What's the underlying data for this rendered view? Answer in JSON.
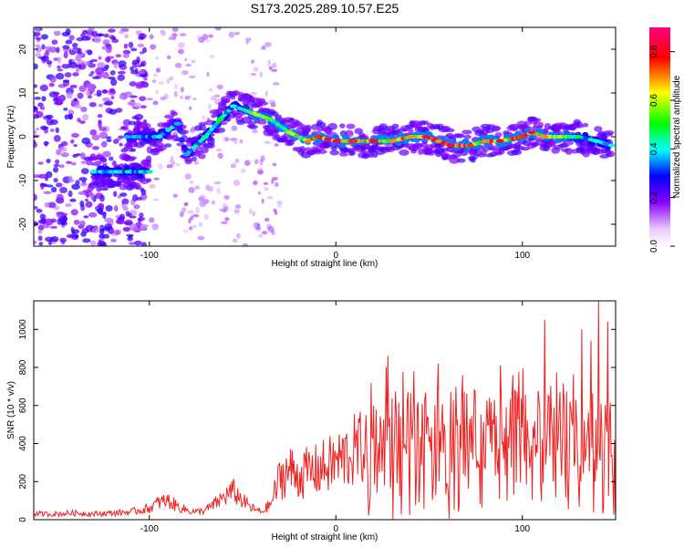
{
  "chart_data": [
    {
      "type": "heatmap",
      "title": "S173.2025.289.10.57.E25",
      "xlabel": "Height of straight line (km)",
      "ylabel": "Frequency (Hz)",
      "xlim": [
        -162,
        150
      ],
      "ylim": [
        -25,
        25
      ],
      "xticks": [
        -100,
        0,
        100
      ],
      "yticks": [
        -20,
        -10,
        0,
        10,
        20
      ],
      "xtick_labels": [
        "-100",
        "0",
        "100"
      ],
      "ytick_labels": [
        "-20",
        "-10",
        "0",
        "10",
        "20"
      ],
      "colorbar": {
        "label": "Normalized spectral amplitude",
        "range": [
          0,
          0.9
        ],
        "ticks": [
          0,
          0.2,
          0.4,
          0.6,
          0.8
        ],
        "tick_labels": [
          "0.0",
          "0.2",
          "0.4",
          "0.6",
          "0.8"
        ],
        "colors": [
          "#ffffff",
          "#8a00ff",
          "#0000ff",
          "#00ffff",
          "#00ff00",
          "#ffff00",
          "#ff0000",
          "#ff0080"
        ]
      },
      "trace_points": [
        {
          "x": -130,
          "y": -8,
          "v": 0.4
        },
        {
          "x": -100,
          "y": -8,
          "v": 0.45
        },
        {
          "x": -112,
          "y": 0,
          "v": 0.35
        },
        {
          "x": -95,
          "y": 0,
          "v": 0.4
        },
        {
          "x": -85,
          "y": 3,
          "v": 0.35
        },
        {
          "x": -80,
          "y": -4,
          "v": 0.35
        },
        {
          "x": -70,
          "y": 0,
          "v": 0.45
        },
        {
          "x": -62,
          "y": 4,
          "v": 0.5
        },
        {
          "x": -55,
          "y": 7,
          "v": 0.4
        },
        {
          "x": -42,
          "y": 5,
          "v": 0.6
        },
        {
          "x": -35,
          "y": 4,
          "v": 0.55
        },
        {
          "x": -25,
          "y": 1,
          "v": 0.6
        },
        {
          "x": -15,
          "y": -1,
          "v": 0.7
        },
        {
          "x": -10,
          "y": 0,
          "v": 0.75
        },
        {
          "x": 0,
          "y": -1,
          "v": 0.85
        },
        {
          "x": 10,
          "y": -1,
          "v": 0.75
        },
        {
          "x": 20,
          "y": -1,
          "v": 0.8
        },
        {
          "x": 30,
          "y": -1,
          "v": 0.7
        },
        {
          "x": 40,
          "y": 0,
          "v": 0.7
        },
        {
          "x": 48,
          "y": 0,
          "v": 0.85
        },
        {
          "x": 55,
          "y": -1,
          "v": 0.7
        },
        {
          "x": 62,
          "y": -2,
          "v": 0.85
        },
        {
          "x": 72,
          "y": -2,
          "v": 0.75
        },
        {
          "x": 80,
          "y": -1,
          "v": 0.7
        },
        {
          "x": 88,
          "y": -1,
          "v": 0.8
        },
        {
          "x": 100,
          "y": 0,
          "v": 0.75
        },
        {
          "x": 105,
          "y": 1,
          "v": 0.85
        },
        {
          "x": 112,
          "y": 0,
          "v": 0.7
        },
        {
          "x": 120,
          "y": 0,
          "v": 0.6
        },
        {
          "x": 130,
          "y": 0,
          "v": 0.5
        },
        {
          "x": 140,
          "y": -1,
          "v": 0.4
        },
        {
          "x": 148,
          "y": -2,
          "v": 0.4
        }
      ]
    },
    {
      "type": "line",
      "xlabel": "Height of straight line (km)",
      "ylabel": "SNR (10 * v/v)",
      "xlim": [
        -162,
        150
      ],
      "ylim": [
        0,
        1150
      ],
      "xticks": [
        -100,
        0,
        100
      ],
      "yticks": [
        0,
        200,
        400,
        600,
        800,
        1000
      ],
      "xtick_labels": [
        "-100",
        "0",
        "100"
      ],
      "ytick_labels": [
        "0",
        "200",
        "400",
        "600",
        "800",
        "1000"
      ],
      "series": [
        {
          "name": "SNR",
          "color": "#ee2222",
          "x": [
            -162,
            -150,
            -140,
            -130,
            -120,
            -110,
            -100,
            -95,
            -90,
            -85,
            -80,
            -75,
            -70,
            -65,
            -60,
            -55,
            -50,
            -45,
            -40,
            -35,
            -30,
            -25,
            -20,
            -15,
            -10,
            -5,
            0,
            5,
            10,
            15,
            20,
            25,
            30,
            35,
            40,
            45,
            50,
            55,
            60,
            65,
            70,
            75,
            80,
            85,
            90,
            95,
            100,
            105,
            110,
            115,
            120,
            125,
            130,
            135,
            140,
            145,
            150
          ],
          "values": [
            30,
            30,
            35,
            30,
            35,
            40,
            60,
            90,
            100,
            70,
            50,
            40,
            50,
            80,
            120,
            150,
            100,
            60,
            40,
            80,
            220,
            260,
            230,
            250,
            260,
            280,
            300,
            330,
            360,
            380,
            420,
            430,
            420,
            440,
            440,
            430,
            440,
            450,
            440,
            420,
            430,
            440,
            430,
            420,
            430,
            440,
            420,
            440,
            430,
            420,
            440,
            420,
            430,
            440,
            420,
            430,
            420
          ],
          "peaks": [
            {
              "x": 19,
              "y": 720
            },
            {
              "x": 28,
              "y": 860
            },
            {
              "x": 42,
              "y": 780
            },
            {
              "x": 55,
              "y": 820
            },
            {
              "x": 68,
              "y": 760
            },
            {
              "x": 88,
              "y": 810
            },
            {
              "x": 95,
              "y": 760
            },
            {
              "x": 112,
              "y": 1050
            },
            {
              "x": 132,
              "y": 1000
            },
            {
              "x": 137,
              "y": 940
            },
            {
              "x": 141,
              "y": 1150
            },
            {
              "x": 146,
              "y": 1040
            }
          ]
        }
      ]
    }
  ]
}
